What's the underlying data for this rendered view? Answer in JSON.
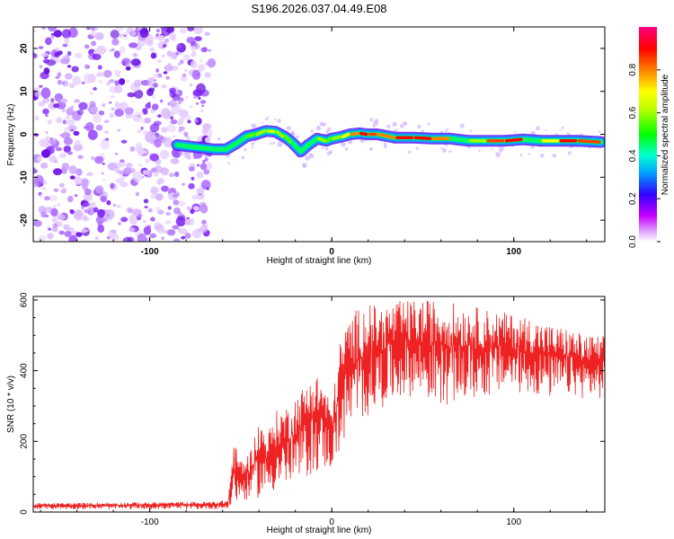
{
  "title": "S196.2026.037.04.49.E08",
  "chart_data": [
    {
      "type": "heatmap",
      "name": "spectrogram",
      "xlabel": "Height of straight line (km)",
      "ylabel": "Frequency (Hz)",
      "xlim": [
        -164,
        150
      ],
      "ylim": [
        -25,
        25
      ],
      "xticks": [
        -100,
        0,
        100
      ],
      "yticks": [
        20,
        10,
        0,
        -10,
        -20
      ],
      "noise_region_x": [
        -164,
        -66
      ],
      "signal_track": {
        "x": [
          -85,
          -75,
          -65,
          -58,
          -52,
          -47,
          -42,
          -36,
          -31,
          -26,
          -22,
          -17,
          -13,
          -8,
          -3,
          0,
          5,
          10,
          15,
          20,
          25,
          35,
          45,
          55,
          65,
          75,
          85,
          95,
          105,
          115,
          125,
          135,
          148
        ],
        "y": [
          -2.5,
          -3,
          -3.5,
          -3.5,
          -2,
          -0.5,
          0,
          0.8,
          0.6,
          -0.5,
          -1.8,
          -4,
          -2.5,
          -1,
          -1.5,
          -1,
          -0.6,
          0,
          0.2,
          0,
          0,
          -0.8,
          -0.8,
          -1,
          -1,
          -1.5,
          -1.5,
          -1.5,
          -1.2,
          -1.5,
          -1.5,
          -1.5,
          -1.8
        ],
        "amplitude": [
          0.4,
          0.35,
          0.3,
          0.3,
          0.45,
          0.55,
          0.6,
          0.65,
          0.6,
          0.55,
          0.5,
          0.4,
          0.5,
          0.6,
          0.55,
          0.6,
          0.7,
          0.8,
          0.9,
          0.85,
          0.8,
          0.9,
          0.9,
          0.8,
          0.5,
          0.6,
          0.85,
          0.9,
          0.5,
          0.7,
          0.9,
          0.85,
          0.6
        ]
      }
    },
    {
      "type": "colorbar",
      "label": "Normalized spectral amplitude",
      "range": [
        0,
        1
      ],
      "ticks": [
        "0.0",
        "0.2",
        "0.4",
        "0.6",
        "0.8"
      ],
      "colors": [
        "#ffffff",
        "#c800ff",
        "#0000ff",
        "#00c8ff",
        "#00ff00",
        "#ffff00",
        "#ff8000",
        "#ff0000",
        "#ff0080"
      ]
    },
    {
      "type": "line",
      "name": "snr",
      "xlabel": "Height of straight line (km)",
      "ylabel": "SNR (10 * v/v)",
      "xlim": [
        -164,
        150
      ],
      "ylim": [
        0,
        610
      ],
      "xticks": [
        -100,
        0,
        100
      ],
      "yticks": [
        0,
        200,
        400,
        600
      ],
      "envelope_x": [
        -164,
        -110,
        -66,
        -57,
        -54,
        -50,
        -45,
        -40,
        -35,
        -30,
        -25,
        -20,
        -15,
        -10,
        -5,
        0,
        5,
        10,
        15,
        20,
        25,
        30,
        40,
        50,
        60,
        70,
        80,
        90,
        100,
        110,
        120,
        130,
        140,
        150
      ],
      "envelope_low": [
        8,
        8,
        8,
        8,
        20,
        30,
        35,
        40,
        50,
        60,
        70,
        80,
        90,
        110,
        120,
        120,
        180,
        220,
        250,
        270,
        290,
        300,
        330,
        320,
        300,
        310,
        320,
        330,
        340,
        330,
        320,
        330,
        320,
        320
      ],
      "envelope_high": [
        25,
        28,
        30,
        35,
        200,
        150,
        170,
        260,
        230,
        290,
        300,
        330,
        360,
        400,
        380,
        300,
        500,
        560,
        580,
        600,
        580,
        590,
        600,
        600,
        600,
        590,
        580,
        570,
        560,
        550,
        530,
        520,
        500,
        500
      ],
      "line_color": "#ee2222"
    }
  ]
}
